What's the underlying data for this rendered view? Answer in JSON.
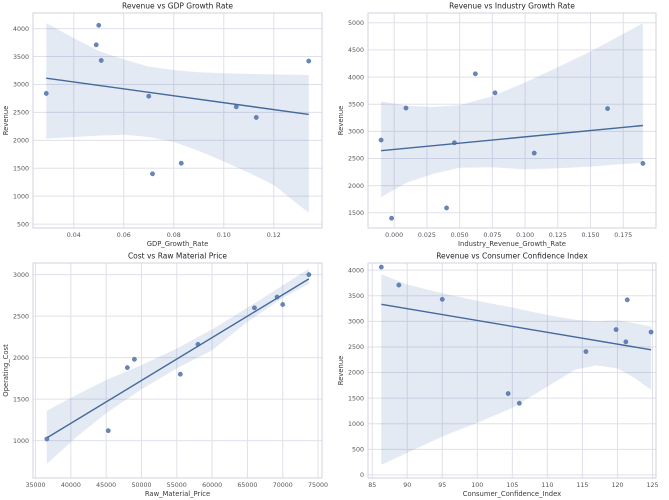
{
  "figure": {
    "background": "#ffffff",
    "description": "2x2 grid of regression scatter plots"
  },
  "style": {
    "point_color": "#4c72b0",
    "point_opacity": 0.85,
    "line_color": "#44699d",
    "band_color": "#4c72b0",
    "band_opacity": 0.15,
    "grid_color": "#e0e0ea",
    "spine_color": "#d2d2dc",
    "title_color": "#262626",
    "label_color": "#3a3a3a",
    "tick_color": "#555555"
  },
  "chart_data": [
    {
      "type": "scatter",
      "title": "Revenue vs GDP Growth Rate",
      "xlabel": "GDP_Growth_Rate",
      "ylabel": "Revenue",
      "regression": true,
      "grid": true,
      "x": [
        0.029,
        0.049,
        0.05,
        0.051,
        0.0715,
        0.07,
        0.083,
        0.105,
        0.113,
        0.134
      ],
      "y": [
        2840,
        3710,
        4060,
        3430,
        1400,
        2790,
        1590,
        2600,
        2410,
        3420
      ],
      "xlim": [
        0.0237,
        0.1393
      ],
      "ylim": [
        430,
        4280
      ],
      "xticks": [
        0.04,
        0.06,
        0.08,
        0.1,
        0.12
      ],
      "xtick_labels": [
        "0.04",
        "0.06",
        "0.08",
        "0.10",
        "0.12"
      ],
      "yticks": [
        500,
        1000,
        1500,
        2000,
        2500,
        3000,
        3500,
        4000
      ],
      "ytick_labels": [
        "500",
        "1000",
        "1500",
        "2000",
        "2500",
        "3000",
        "3500",
        "4000"
      ],
      "band": {
        "x": [
          0.029,
          0.04,
          0.05,
          0.06,
          0.07,
          0.08,
          0.09,
          0.1,
          0.11,
          0.12,
          0.134
        ],
        "upper": [
          4100,
          3830,
          3600,
          3450,
          3320,
          3260,
          3220,
          3200,
          3190,
          3180,
          3170
        ],
        "lower": [
          2030,
          2060,
          2085,
          2100,
          2060,
          1970,
          1810,
          1620,
          1420,
          1200,
          700
        ]
      }
    },
    {
      "type": "scatter",
      "title": "Revenue vs Industry Growth Rate",
      "xlabel": "Industry_Revenue_Growth_Rate",
      "ylabel": "Revenue",
      "regression": true,
      "grid": true,
      "x": [
        -0.01,
        -0.002,
        0.009,
        0.04,
        0.046,
        0.062,
        0.077,
        0.107,
        0.163,
        0.19
      ],
      "y": [
        2840,
        1400,
        3430,
        1590,
        2790,
        4060,
        3710,
        2600,
        3420,
        2410
      ],
      "xlim": [
        -0.02,
        0.2
      ],
      "ylim": [
        1220,
        5180
      ],
      "xticks": [
        0.0,
        0.025,
        0.05,
        0.075,
        0.1,
        0.125,
        0.15,
        0.175
      ],
      "xtick_labels": [
        "0.000",
        "0.025",
        "0.050",
        "0.075",
        "0.100",
        "0.125",
        "0.150",
        "0.175"
      ],
      "yticks": [
        1500,
        2000,
        2500,
        3000,
        3500,
        4000,
        4500,
        5000
      ],
      "ytick_labels": [
        "1500",
        "2000",
        "2500",
        "3000",
        "3500",
        "4000",
        "4500",
        "5000"
      ],
      "band": {
        "x": [
          -0.01,
          0.01,
          0.03,
          0.05,
          0.075,
          0.1,
          0.125,
          0.15,
          0.17,
          0.19
        ],
        "upper": [
          3550,
          3470,
          3450,
          3480,
          3650,
          3900,
          4180,
          4470,
          4730,
          4990
        ],
        "lower": [
          1790,
          2060,
          2220,
          2330,
          2340,
          2300,
          2320,
          2350,
          2390,
          2420
        ]
      }
    },
    {
      "type": "scatter",
      "title": "Cost vs Raw Material Price",
      "xlabel": "Raw_Material_Price",
      "ylabel": "Operating_Cost",
      "regression": true,
      "grid": true,
      "x": [
        36600,
        45300,
        48000,
        49000,
        55500,
        58000,
        66000,
        69200,
        70000,
        73700
      ],
      "y": [
        1020,
        1120,
        1880,
        1980,
        1800,
        2160,
        2600,
        2730,
        2640,
        3000
      ],
      "xlim": [
        34640,
        75560
      ],
      "ylim": [
        550,
        3140
      ],
      "xticks": [
        35000,
        40000,
        45000,
        50000,
        55000,
        60000,
        65000,
        70000,
        75000
      ],
      "xtick_labels": [
        "35000",
        "40000",
        "45000",
        "50000",
        "55000",
        "60000",
        "65000",
        "70000",
        "75000"
      ],
      "yticks": [
        1000,
        1500,
        2000,
        2500,
        3000
      ],
      "ytick_labels": [
        "1000",
        "1500",
        "2000",
        "2500",
        "3000"
      ],
      "band": {
        "x": [
          36600,
          41000,
          45000,
          50000,
          55000,
          60000,
          65000,
          70000,
          73700
        ],
        "upper": [
          1360,
          1560,
          1730,
          1910,
          2110,
          2340,
          2600,
          2870,
          3070
        ],
        "lower": [
          720,
          1060,
          1330,
          1620,
          1870,
          2090,
          2430,
          2720,
          2890
        ]
      }
    },
    {
      "type": "scatter",
      "title": "Revenue vs Consumer Confidence Index",
      "xlabel": "Consumer_Confidence_Index",
      "ylabel": "Revenue",
      "regression": true,
      "grid": true,
      "x": [
        86.3,
        88.8,
        95.0,
        104.4,
        106.0,
        115.5,
        119.8,
        121.2,
        121.4,
        124.8
      ],
      "y": [
        4060,
        3710,
        3430,
        1590,
        1400,
        2410,
        2840,
        2600,
        3420,
        2790
      ],
      "xlim": [
        84.4,
        125.5
      ],
      "ylim": [
        -60,
        4140
      ],
      "xticks": [
        85,
        90,
        95,
        100,
        105,
        110,
        115,
        120,
        125
      ],
      "xtick_labels": [
        "85",
        "90",
        "95",
        "100",
        "105",
        "110",
        "115",
        "120",
        "125"
      ],
      "yticks": [
        0,
        500,
        1000,
        1500,
        2000,
        2500,
        3000,
        3500,
        4000
      ],
      "ytick_labels": [
        "0",
        "500",
        "1000",
        "1500",
        "2000",
        "2500",
        "3000",
        "3500",
        "4000"
      ],
      "band": {
        "x": [
          86.3,
          90,
          95,
          100,
          105,
          108,
          111,
          114,
          117,
          120,
          122.5,
          124.8
        ],
        "upper": [
          3920,
          3720,
          3550,
          3400,
          3270,
          3180,
          3100,
          3030,
          3000,
          3020,
          2960,
          2900
        ],
        "lower": [
          200,
          430,
          750,
          1020,
          1310,
          1560,
          1810,
          2060,
          2140,
          2080,
          1890,
          1660
        ]
      }
    }
  ]
}
